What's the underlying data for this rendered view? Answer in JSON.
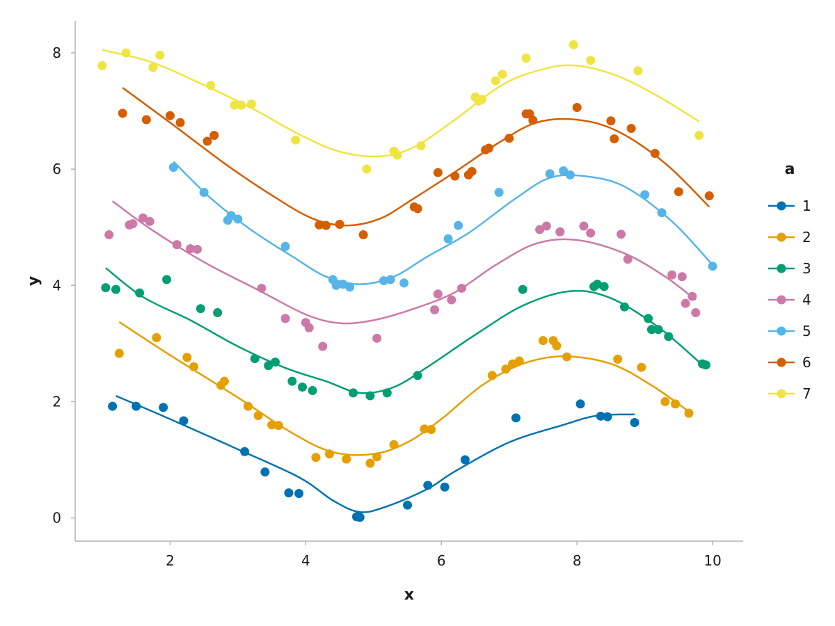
{
  "chart_data": {
    "type": "scatter",
    "xlabel": "x",
    "ylabel": "y",
    "xlim": [
      0.6,
      10.45
    ],
    "ylim": [
      -0.4,
      8.55
    ],
    "xticks": [
      2,
      4,
      6,
      8,
      10
    ],
    "yticks": [
      0,
      2,
      4,
      6,
      8
    ],
    "grid": false,
    "legend": {
      "title": "a",
      "placement": "right"
    },
    "series": [
      {
        "name": "1",
        "color": "#0072B2",
        "points": [
          [
            1.15,
            1.92
          ],
          [
            1.5,
            1.92
          ],
          [
            1.9,
            1.9
          ],
          [
            2.2,
            1.67
          ],
          [
            3.1,
            1.14
          ],
          [
            3.4,
            0.79
          ],
          [
            3.75,
            0.43
          ],
          [
            3.9,
            0.42
          ],
          [
            4.75,
            0.02
          ],
          [
            4.8,
            0.01
          ],
          [
            5.5,
            0.22
          ],
          [
            5.8,
            0.56
          ],
          [
            6.05,
            0.53
          ],
          [
            6.35,
            1.0
          ],
          [
            7.1,
            1.72
          ],
          [
            8.05,
            1.96
          ],
          [
            8.35,
            1.75
          ],
          [
            8.45,
            1.74
          ],
          [
            8.85,
            1.64
          ]
        ],
        "curve": [
          [
            1.2,
            2.1
          ],
          [
            2.0,
            1.7
          ],
          [
            3.0,
            1.18
          ],
          [
            3.9,
            0.7
          ],
          [
            4.4,
            0.3
          ],
          [
            4.8,
            0.1
          ],
          [
            5.2,
            0.2
          ],
          [
            5.8,
            0.5
          ],
          [
            6.2,
            0.8
          ],
          [
            7.0,
            1.3
          ],
          [
            7.8,
            1.6
          ],
          [
            8.3,
            1.76
          ],
          [
            8.85,
            1.78
          ]
        ]
      },
      {
        "name": "2",
        "color": "#E69F00",
        "points": [
          [
            1.25,
            2.83
          ],
          [
            1.8,
            3.1
          ],
          [
            2.25,
            2.76
          ],
          [
            2.35,
            2.6
          ],
          [
            2.75,
            2.28
          ],
          [
            2.8,
            2.35
          ],
          [
            3.15,
            1.92
          ],
          [
            3.3,
            1.76
          ],
          [
            3.5,
            1.6
          ],
          [
            3.6,
            1.59
          ],
          [
            4.15,
            1.04
          ],
          [
            4.35,
            1.1
          ],
          [
            4.6,
            1.01
          ],
          [
            4.95,
            0.94
          ],
          [
            5.05,
            1.05
          ],
          [
            5.3,
            1.26
          ],
          [
            5.75,
            1.53
          ],
          [
            5.85,
            1.52
          ],
          [
            6.75,
            2.45
          ],
          [
            6.95,
            2.56
          ],
          [
            7.05,
            2.65
          ],
          [
            7.15,
            2.7
          ],
          [
            7.5,
            3.05
          ],
          [
            7.65,
            3.05
          ],
          [
            7.7,
            2.96
          ],
          [
            7.85,
            2.77
          ],
          [
            8.6,
            2.73
          ],
          [
            8.95,
            2.59
          ],
          [
            9.3,
            2.0
          ],
          [
            9.45,
            1.96
          ],
          [
            9.65,
            1.8
          ]
        ],
        "curve": [
          [
            1.25,
            3.37
          ],
          [
            2.0,
            2.8
          ],
          [
            3.0,
            2.07
          ],
          [
            3.8,
            1.46
          ],
          [
            4.4,
            1.13
          ],
          [
            5.0,
            1.1
          ],
          [
            5.5,
            1.3
          ],
          [
            6.0,
            1.7
          ],
          [
            6.6,
            2.28
          ],
          [
            7.2,
            2.65
          ],
          [
            7.8,
            2.78
          ],
          [
            8.5,
            2.65
          ],
          [
            9.1,
            2.28
          ],
          [
            9.65,
            1.83
          ]
        ]
      },
      {
        "name": "3",
        "color": "#009E73",
        "points": [
          [
            1.05,
            3.96
          ],
          [
            1.2,
            3.93
          ],
          [
            1.55,
            3.87
          ],
          [
            1.95,
            4.1
          ],
          [
            2.45,
            3.6
          ],
          [
            2.7,
            3.53
          ],
          [
            3.25,
            2.74
          ],
          [
            3.45,
            2.62
          ],
          [
            3.55,
            2.68
          ],
          [
            3.8,
            2.35
          ],
          [
            3.95,
            2.25
          ],
          [
            4.1,
            2.19
          ],
          [
            4.7,
            2.15
          ],
          [
            4.95,
            2.1
          ],
          [
            5.2,
            2.15
          ],
          [
            5.65,
            2.45
          ],
          [
            7.2,
            3.93
          ],
          [
            8.25,
            3.98
          ],
          [
            8.3,
            4.02
          ],
          [
            8.4,
            3.98
          ],
          [
            8.7,
            3.63
          ],
          [
            9.05,
            3.43
          ],
          [
            9.1,
            3.24
          ],
          [
            9.2,
            3.24
          ],
          [
            9.35,
            3.12
          ],
          [
            9.85,
            2.65
          ],
          [
            9.9,
            2.63
          ]
        ],
        "curve": [
          [
            1.05,
            4.3
          ],
          [
            1.6,
            3.8
          ],
          [
            2.3,
            3.4
          ],
          [
            3.0,
            2.95
          ],
          [
            3.7,
            2.58
          ],
          [
            4.3,
            2.35
          ],
          [
            4.8,
            2.15
          ],
          [
            5.3,
            2.25
          ],
          [
            5.8,
            2.6
          ],
          [
            6.5,
            3.15
          ],
          [
            7.2,
            3.65
          ],
          [
            7.9,
            3.9
          ],
          [
            8.5,
            3.78
          ],
          [
            9.2,
            3.28
          ],
          [
            9.85,
            2.63
          ]
        ]
      },
      {
        "name": "4",
        "color": "#CC79A7",
        "points": [
          [
            1.1,
            4.87
          ],
          [
            1.4,
            5.04
          ],
          [
            1.45,
            5.06
          ],
          [
            1.6,
            5.16
          ],
          [
            1.7,
            5.1
          ],
          [
            2.1,
            4.7
          ],
          [
            2.3,
            4.63
          ],
          [
            2.4,
            4.62
          ],
          [
            3.35,
            3.95
          ],
          [
            3.7,
            3.43
          ],
          [
            4.0,
            3.36
          ],
          [
            4.05,
            3.27
          ],
          [
            4.25,
            2.95
          ],
          [
            5.05,
            3.09
          ],
          [
            5.9,
            3.58
          ],
          [
            5.95,
            3.85
          ],
          [
            6.15,
            3.75
          ],
          [
            6.3,
            3.95
          ],
          [
            7.45,
            4.96
          ],
          [
            7.55,
            5.02
          ],
          [
            7.75,
            4.92
          ],
          [
            8.1,
            5.02
          ],
          [
            8.2,
            4.9
          ],
          [
            8.65,
            4.88
          ],
          [
            8.75,
            4.45
          ],
          [
            9.4,
            4.18
          ],
          [
            9.55,
            4.15
          ],
          [
            9.6,
            3.69
          ],
          [
            9.7,
            3.81
          ],
          [
            9.75,
            3.53
          ]
        ],
        "curve": [
          [
            1.15,
            5.45
          ],
          [
            1.7,
            4.98
          ],
          [
            2.5,
            4.4
          ],
          [
            3.3,
            3.92
          ],
          [
            4.0,
            3.5
          ],
          [
            4.5,
            3.35
          ],
          [
            5.0,
            3.4
          ],
          [
            5.6,
            3.6
          ],
          [
            6.2,
            3.88
          ],
          [
            6.8,
            4.35
          ],
          [
            7.4,
            4.72
          ],
          [
            8.0,
            4.78
          ],
          [
            8.7,
            4.55
          ],
          [
            9.3,
            4.15
          ],
          [
            9.75,
            3.75
          ]
        ]
      },
      {
        "name": "5",
        "color": "#56B4E9",
        "points": [
          [
            2.05,
            6.03
          ],
          [
            2.5,
            5.6
          ],
          [
            2.85,
            5.12
          ],
          [
            2.9,
            5.2
          ],
          [
            3.0,
            5.14
          ],
          [
            3.7,
            4.67
          ],
          [
            4.4,
            4.1
          ],
          [
            4.45,
            4.0
          ],
          [
            4.55,
            4.02
          ],
          [
            4.65,
            3.97
          ],
          [
            5.15,
            4.08
          ],
          [
            5.25,
            4.1
          ],
          [
            5.45,
            4.04
          ],
          [
            6.1,
            4.8
          ],
          [
            6.25,
            5.03
          ],
          [
            6.85,
            5.6
          ],
          [
            7.6,
            5.92
          ],
          [
            7.8,
            5.97
          ],
          [
            7.9,
            5.9
          ],
          [
            9.0,
            5.56
          ],
          [
            9.25,
            5.25
          ],
          [
            10.0,
            4.33
          ]
        ],
        "curve": [
          [
            2.05,
            6.13
          ],
          [
            2.6,
            5.5
          ],
          [
            3.2,
            4.95
          ],
          [
            3.8,
            4.5
          ],
          [
            4.3,
            4.15
          ],
          [
            4.8,
            4.02
          ],
          [
            5.3,
            4.15
          ],
          [
            5.8,
            4.5
          ],
          [
            6.4,
            4.9
          ],
          [
            7.1,
            5.5
          ],
          [
            7.6,
            5.85
          ],
          [
            8.1,
            5.88
          ],
          [
            8.7,
            5.7
          ],
          [
            9.4,
            5.1
          ],
          [
            10.0,
            4.35
          ]
        ]
      },
      {
        "name": "6",
        "color": "#D55E00",
        "points": [
          [
            1.3,
            6.96
          ],
          [
            1.65,
            6.85
          ],
          [
            2.0,
            6.92
          ],
          [
            2.15,
            6.8
          ],
          [
            2.55,
            6.48
          ],
          [
            2.65,
            6.58
          ],
          [
            4.2,
            5.04
          ],
          [
            4.3,
            5.03
          ],
          [
            4.5,
            5.05
          ],
          [
            4.85,
            4.87
          ],
          [
            5.6,
            5.35
          ],
          [
            5.65,
            5.32
          ],
          [
            5.95,
            5.94
          ],
          [
            6.2,
            5.88
          ],
          [
            6.4,
            5.9
          ],
          [
            6.45,
            5.96
          ],
          [
            6.65,
            6.33
          ],
          [
            6.7,
            6.36
          ],
          [
            7.0,
            6.53
          ],
          [
            7.25,
            6.95
          ],
          [
            7.3,
            6.95
          ],
          [
            7.35,
            6.84
          ],
          [
            8.0,
            7.06
          ],
          [
            8.5,
            6.83
          ],
          [
            8.55,
            6.52
          ],
          [
            8.8,
            6.7
          ],
          [
            9.15,
            6.27
          ],
          [
            9.5,
            5.61
          ],
          [
            9.95,
            5.54
          ]
        ],
        "curve": [
          [
            1.3,
            7.4
          ],
          [
            2.0,
            6.8
          ],
          [
            2.8,
            6.1
          ],
          [
            3.5,
            5.55
          ],
          [
            4.1,
            5.15
          ],
          [
            4.6,
            5.03
          ],
          [
            5.1,
            5.15
          ],
          [
            5.6,
            5.5
          ],
          [
            6.2,
            5.95
          ],
          [
            6.8,
            6.42
          ],
          [
            7.4,
            6.8
          ],
          [
            8.0,
            6.85
          ],
          [
            8.6,
            6.65
          ],
          [
            9.3,
            6.1
          ],
          [
            9.95,
            5.35
          ]
        ]
      },
      {
        "name": "7",
        "color": "#F0E442",
        "points": [
          [
            1.0,
            7.78
          ],
          [
            1.35,
            8.0
          ],
          [
            1.75,
            7.75
          ],
          [
            1.85,
            7.96
          ],
          [
            2.6,
            7.44
          ],
          [
            2.95,
            7.1
          ],
          [
            3.05,
            7.1
          ],
          [
            3.2,
            7.12
          ],
          [
            3.85,
            6.5
          ],
          [
            4.9,
            6.0
          ],
          [
            5.3,
            6.31
          ],
          [
            5.35,
            6.24
          ],
          [
            5.7,
            6.4
          ],
          [
            6.5,
            7.24
          ],
          [
            6.55,
            7.17
          ],
          [
            6.6,
            7.2
          ],
          [
            6.8,
            7.52
          ],
          [
            6.9,
            7.63
          ],
          [
            7.25,
            7.91
          ],
          [
            7.95,
            8.14
          ],
          [
            8.2,
            7.87
          ],
          [
            8.9,
            7.69
          ],
          [
            9.8,
            6.58
          ]
        ],
        "curve": [
          [
            1.0,
            8.05
          ],
          [
            1.7,
            7.85
          ],
          [
            2.4,
            7.5
          ],
          [
            3.2,
            7.05
          ],
          [
            3.9,
            6.6
          ],
          [
            4.5,
            6.3
          ],
          [
            5.1,
            6.22
          ],
          [
            5.6,
            6.38
          ],
          [
            6.2,
            6.85
          ],
          [
            6.9,
            7.45
          ],
          [
            7.5,
            7.72
          ],
          [
            8.0,
            7.78
          ],
          [
            8.6,
            7.6
          ],
          [
            9.2,
            7.25
          ],
          [
            9.8,
            6.82
          ]
        ]
      }
    ]
  }
}
